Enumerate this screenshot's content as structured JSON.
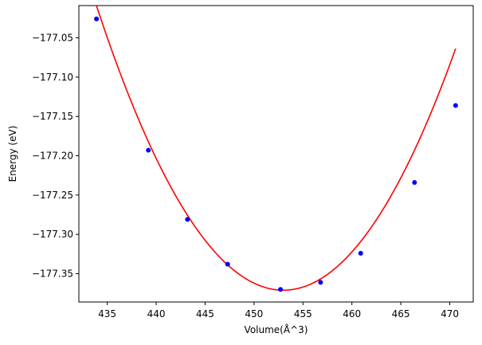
{
  "chart_data": {
    "type": "scatter",
    "title": "",
    "xlabel": "Volume(Å^3)",
    "ylabel": "Energy (eV)",
    "xlim": [
      432.1,
      472.4
    ],
    "ylim": [
      -177.386,
      -177.009
    ],
    "xticks": [
      435,
      440,
      445,
      450,
      455,
      460,
      465,
      470
    ],
    "yticks": [
      -177.35,
      -177.3,
      -177.25,
      -177.2,
      -177.15,
      -177.1,
      -177.05
    ],
    "ytick_labels": [
      "−177.35",
      "−177.30",
      "−177.25",
      "−177.20",
      "−177.15",
      "−177.10",
      "−177.05"
    ],
    "grid": false,
    "series": [
      {
        "kind": "points",
        "color": "#0000ff",
        "x": [
          433.9,
          439.2,
          443.2,
          447.3,
          452.7,
          456.8,
          460.9,
          466.4,
          470.6
        ],
        "y": [
          -177.026,
          -177.193,
          -177.281,
          -177.338,
          -177.37,
          -177.361,
          -177.324,
          -177.234,
          -177.136
        ]
      },
      {
        "kind": "fit-curve",
        "color": "#ff0000",
        "x_range": [
          433.9,
          470.6
        ],
        "coefficients_quadratic_about_vertex": {
          "x0": 453.0,
          "ymin": -177.371,
          "a": 0.000992
        }
      }
    ]
  }
}
